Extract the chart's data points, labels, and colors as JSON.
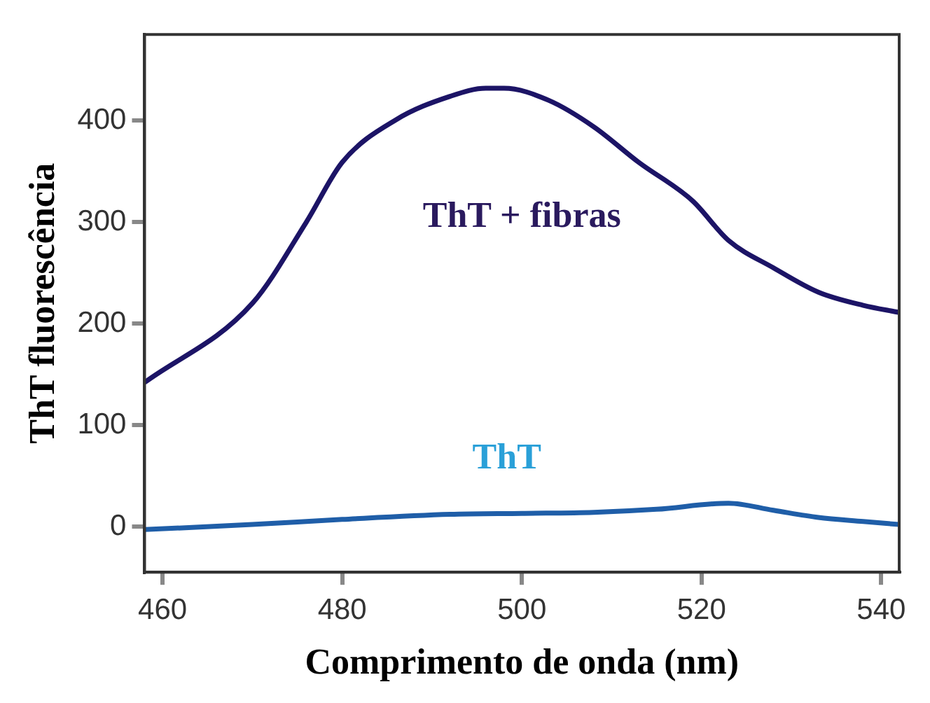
{
  "chart_data": {
    "type": "line",
    "xlabel": "Comprimento de onda (nm)",
    "ylabel": "ThT fluorescência",
    "xlim": [
      458,
      542
    ],
    "xticks": [
      460,
      480,
      500,
      520,
      540
    ],
    "ylim": [
      -45,
      485
    ],
    "yticks": [
      0,
      100,
      200,
      300,
      400
    ],
    "grid": false,
    "legend": false,
    "marker": "none",
    "line_style": "solid",
    "series": [
      {
        "name": "ThT + fibras",
        "color": "#1c1466",
        "x": [
          458,
          470,
          476,
          480,
          486,
          492,
          496,
          498,
          503,
          508,
          513,
          519,
          523,
          528,
          533,
          538,
          542
        ],
        "values": [
          142,
          220,
          300,
          359,
          401,
          424,
          432,
          432,
          420,
          394,
          359,
          321,
          282,
          255,
          231,
          218,
          211
        ]
      },
      {
        "name": "ThT",
        "color": "#1f5ea8",
        "x": [
          458,
          470,
          480,
          492,
          500,
          508,
          515,
          523,
          528,
          533,
          538,
          542
        ],
        "values": [
          -3,
          2,
          7,
          12,
          13,
          14,
          17,
          23,
          16,
          9,
          5,
          2
        ]
      }
    ]
  }
}
